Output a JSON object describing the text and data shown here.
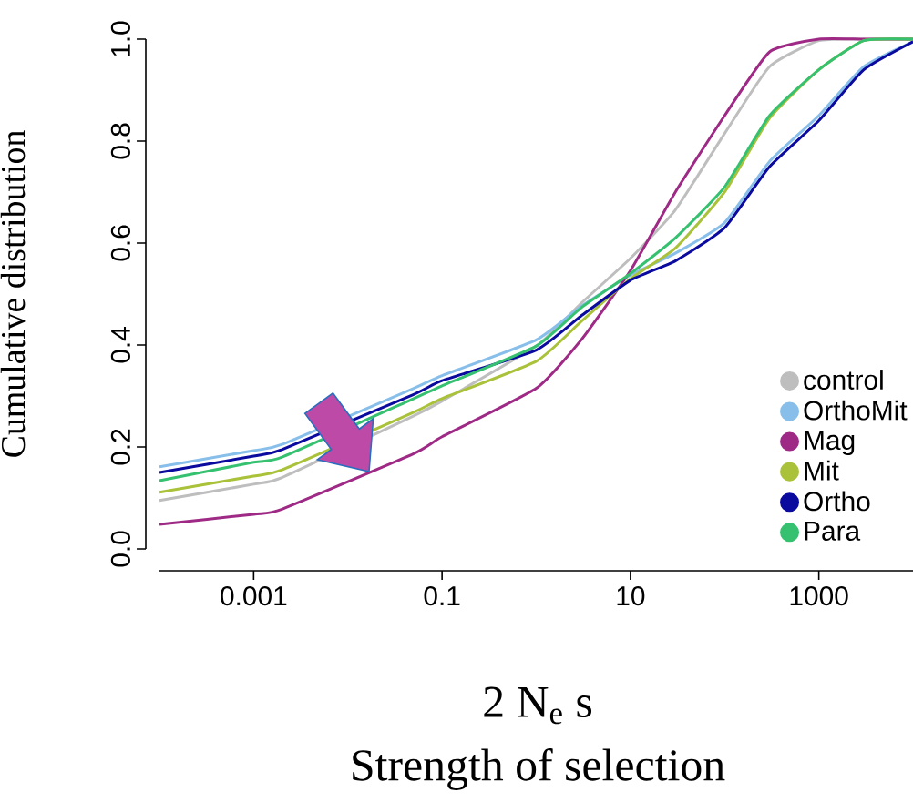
{
  "chart_data": {
    "type": "line",
    "xlabel": "2 N$_{e}$ s",
    "ylabel": "Cumulative distribution",
    "annotations": [
      "Strength of selection"
    ],
    "log": "x",
    "xlim": [
      0.0001,
      10000
    ],
    "xticks": [
      0.001,
      0.1,
      10,
      1000
    ],
    "ylim": [
      0,
      1
    ],
    "yticks": [
      {
        "value": 0,
        "label": "0.0"
      },
      {
        "value": 0.2,
        "label": "0.2"
      },
      {
        "value": 0.4,
        "label": "0.4"
      },
      {
        "value": 0.6,
        "label": "0.6"
      },
      {
        "value": 0.8,
        "label": "0.8"
      },
      {
        "value": 1,
        "label": "1.0"
      }
    ],
    "grid": false,
    "legend": "bottom right",
    "marker": "none",
    "line_style": "solid",
    "x": [
      0.0001,
      0.001,
      0.002,
      0.05,
      0.1,
      1,
      3,
      10,
      30,
      100,
      300,
      1000,
      3000,
      10000
    ],
    "series": [
      {
        "name": "control",
        "color": "#bebebe",
        "values": [
          0.095,
          0.127,
          0.14,
          0.261,
          0.29,
          0.398,
          0.482,
          0.57,
          0.665,
          0.815,
          0.946,
          0.997,
          1.0,
          1.0
        ]
      },
      {
        "name": "OrthoMit",
        "color": "#87bfea",
        "values": [
          0.161,
          0.193,
          0.205,
          0.315,
          0.34,
          0.41,
          0.476,
          0.537,
          0.58,
          0.64,
          0.76,
          0.85,
          0.946,
          0.995
        ]
      },
      {
        "name": "Mag",
        "color": "#9e2a86",
        "values": [
          0.048,
          0.068,
          0.078,
          0.187,
          0.22,
          0.315,
          0.41,
          0.546,
          0.7,
          0.85,
          0.975,
          1.0,
          1.0,
          1.0
        ]
      },
      {
        "name": "Mit",
        "color": "#a9c23a",
        "values": [
          0.111,
          0.143,
          0.155,
          0.268,
          0.295,
          0.368,
          0.446,
          0.53,
          0.59,
          0.7,
          0.845,
          0.94,
          0.997,
          1.0
        ]
      },
      {
        "name": "Ortho",
        "color": "#0a0a9e",
        "values": [
          0.15,
          0.182,
          0.195,
          0.303,
          0.33,
          0.39,
          0.457,
          0.527,
          0.565,
          0.63,
          0.75,
          0.84,
          0.94,
          0.995
        ]
      },
      {
        "name": "Para",
        "color": "#35c16f",
        "values": [
          0.134,
          0.17,
          0.18,
          0.295,
          0.32,
          0.398,
          0.473,
          0.54,
          0.61,
          0.71,
          0.85,
          0.94,
          0.997,
          1.0
        ]
      }
    ]
  }
}
